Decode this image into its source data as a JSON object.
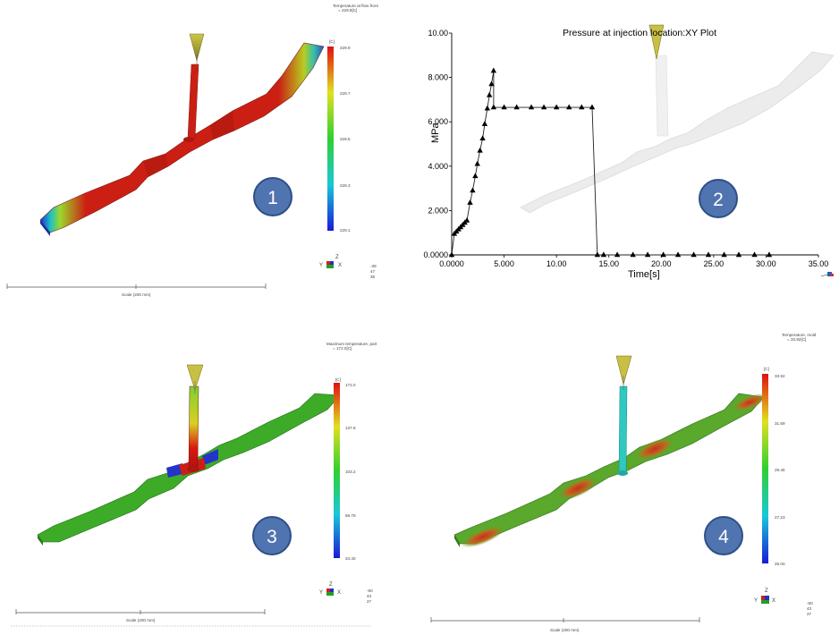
{
  "panels": [
    {
      "number": "1",
      "legend": {
        "title": "Temperature at flow front",
        "subtitle": "= 229.9[C]",
        "unit": "[C]",
        "ticks": [
          "229.9",
          "229.7",
          "229.5",
          "229.3",
          "229.1"
        ]
      },
      "scale": "Scale (200 mm)",
      "view_numbers": [
        "-38",
        "47",
        "35"
      ],
      "axes": {
        "z": "Z",
        "y": "Y",
        "x": "X"
      }
    },
    {
      "number": "2",
      "chart": "Pressure at injection location:XY Plot"
    },
    {
      "number": "3",
      "legend": {
        "title": "Maximum temperature, part",
        "subtitle": "= 172.0[C]",
        "unit": "[C]",
        "ticks": [
          "172.0",
          "137.6",
          "103.2",
          "68.79",
          "34.40"
        ]
      },
      "scale": "Scale (200 mm)",
      "view_numbers": [
        "-50",
        "43",
        "27"
      ],
      "axes": {
        "z": "Z",
        "y": "Y",
        "x": "X"
      }
    },
    {
      "number": "4",
      "legend": {
        "title": "Temperature, mold",
        "subtitle": "= 33.92[C]",
        "unit": "[C]",
        "ticks": [
          "33.92",
          "31.69",
          "29.46",
          "27.23",
          "25.00"
        ]
      },
      "scale": "Scale (200 mm)",
      "view_numbers": [
        "-50",
        "43",
        "27"
      ],
      "axes": {
        "z": "Z",
        "y": "Y",
        "x": "X"
      }
    }
  ],
  "colors": {
    "badge": "#4f74b0",
    "badge_border": "#2e4f86",
    "melt": "#cc1f14",
    "green": "#3fae2c",
    "cyan": "#30c8c0",
    "nozzle": "#b8b23a"
  },
  "chart_data": {
    "type": "line",
    "title": "Pressure at injection location:XY Plot",
    "xlabel": "Time[s]",
    "ylabel": "MPa",
    "xlim": [
      0,
      35
    ],
    "ylim": [
      0,
      10
    ],
    "x_ticks": [
      "0.0000",
      "5.000",
      "10.00",
      "15.00",
      "20.00",
      "25.00",
      "30.00",
      "35.00"
    ],
    "y_ticks": [
      "0.0000",
      "2.000",
      "4.000",
      "6.000",
      "8.000",
      "10.00"
    ],
    "grid": false,
    "series": [
      {
        "x": [
          0,
          0.25,
          0.45,
          0.65,
          0.85,
          1.05,
          1.25,
          1.45,
          1.75,
          2.0,
          2.25,
          2.45,
          2.7,
          2.95,
          3.15,
          3.4,
          3.6,
          3.8,
          4.0,
          4.0,
          5.0,
          6.2,
          7.6,
          8.8,
          10.0,
          11.2,
          12.4,
          13.4,
          13.9,
          14.5,
          15.8,
          17.3,
          18.7,
          20.2,
          21.6,
          23.1,
          24.5,
          26.0,
          27.4,
          28.9,
          30.3
        ],
        "y": [
          0,
          0.95,
          1.05,
          1.15,
          1.25,
          1.35,
          1.45,
          1.55,
          2.35,
          2.9,
          3.55,
          4.1,
          4.7,
          5.25,
          5.9,
          6.6,
          7.2,
          7.7,
          8.3,
          6.65,
          6.65,
          6.65,
          6.65,
          6.65,
          6.65,
          6.65,
          6.65,
          6.65,
          0,
          0,
          0,
          0,
          0,
          0,
          0,
          0,
          0,
          0,
          0,
          0,
          0
        ]
      }
    ]
  }
}
